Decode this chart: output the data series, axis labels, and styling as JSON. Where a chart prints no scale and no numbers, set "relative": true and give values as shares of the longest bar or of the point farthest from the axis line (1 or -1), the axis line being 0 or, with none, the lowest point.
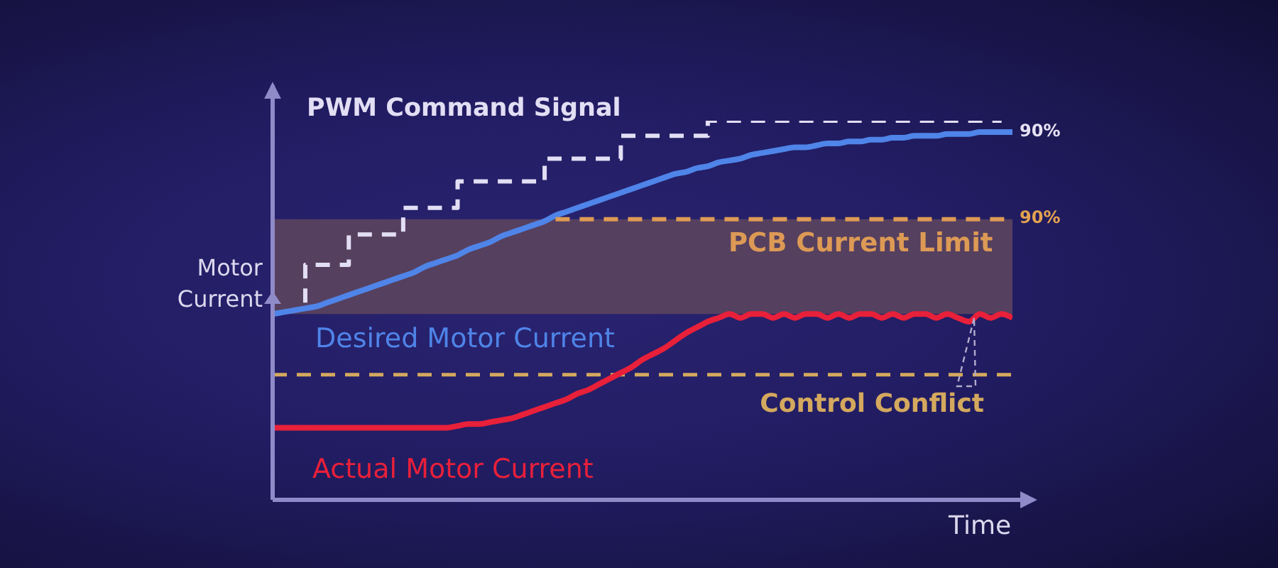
{
  "chart_data": {
    "type": "line",
    "relative": true,
    "xlabel": "Time",
    "ylabel": "Motor Current",
    "categories": [
      null,
      null,
      null,
      null,
      null,
      null,
      null,
      null,
      null,
      null,
      null,
      null,
      null,
      null,
      null,
      null,
      null,
      null,
      null,
      null,
      null,
      null,
      null,
      null,
      null,
      null,
      null,
      null,
      null,
      null,
      null,
      null,
      null,
      null,
      null,
      null,
      null,
      null,
      null,
      null,
      null,
      null,
      null,
      null,
      null,
      null,
      null,
      null,
      null,
      null,
      null,
      null,
      null,
      null,
      null,
      null,
      null,
      null,
      null,
      null,
      null,
      null,
      null,
      null,
      null,
      null,
      null,
      null,
      null
    ],
    "series": [
      {
        "name": "PWM Command Signal",
        "type": "step",
        "line_style": "dashed",
        "color": "#e2def4",
        "values": [
          null,
          null,
          null,
          0.52,
          0.62,
          0.62,
          0.62,
          0.62,
          0.7,
          0.7,
          0.7,
          0.7,
          0.7,
          0.77,
          0.77,
          0.77,
          0.77,
          0.77,
          0.84,
          0.84,
          0.84,
          0.84,
          0.84,
          0.84,
          0.84,
          0.84,
          0.9,
          0.9,
          0.9,
          0.9,
          0.9,
          0.9,
          0.9,
          0.96,
          0.96,
          0.96,
          0.96,
          0.96,
          0.96,
          0.96,
          0.96,
          1,
          1,
          1,
          1,
          1,
          1,
          1,
          1,
          1,
          1,
          1,
          1,
          1,
          1,
          1,
          1,
          1,
          1,
          1,
          1,
          1,
          1,
          1,
          1,
          1,
          1,
          1,
          null
        ]
      },
      {
        "name": "Desired Motor Current",
        "color": "#4f84e8",
        "values": [
          0.49,
          0.495,
          0.5,
          0.505,
          0.51,
          0.52,
          0.53,
          0.54,
          0.55,
          0.56,
          0.57,
          0.58,
          0.59,
          0.6,
          0.615,
          0.625,
          0.635,
          0.645,
          0.66,
          0.67,
          0.68,
          0.695,
          0.705,
          0.715,
          0.725,
          0.735,
          0.75,
          0.76,
          0.77,
          0.78,
          0.79,
          0.8,
          0.81,
          0.82,
          0.83,
          0.84,
          0.85,
          0.86,
          0.865,
          0.875,
          0.88,
          0.89,
          0.895,
          0.9,
          0.91,
          0.915,
          0.92,
          0.925,
          0.93,
          0.93,
          0.935,
          0.94,
          0.94,
          0.945,
          0.945,
          0.95,
          0.95,
          0.955,
          0.955,
          0.96,
          0.96,
          0.96,
          0.965,
          0.965,
          0.965,
          0.97,
          0.97,
          0.97,
          0.97
        ]
      },
      {
        "name": "PCB Current Limit",
        "line_style": "dashed",
        "color": "#dd9a55",
        "values": [
          null,
          null,
          null,
          null,
          null,
          null,
          null,
          null,
          null,
          null,
          null,
          null,
          null,
          null,
          null,
          null,
          null,
          null,
          null,
          null,
          null,
          null,
          null,
          null,
          null,
          null,
          0.74,
          0.74,
          0.74,
          0.74,
          0.74,
          0.74,
          0.74,
          0.74,
          0.74,
          0.74,
          0.74,
          0.74,
          0.74,
          0.74,
          0.74,
          0.74,
          0.74,
          0.74,
          0.74,
          0.74,
          0.74,
          0.74,
          0.74,
          0.74,
          0.74,
          0.74,
          0.74,
          0.74,
          0.74,
          0.74,
          0.74,
          0.74,
          0.74,
          0.74,
          0.74,
          0.74,
          0.74,
          0.74,
          0.74,
          0.74,
          0.74,
          0.74,
          0.74
        ]
      },
      {
        "name": "Actual Motor Current",
        "color": "#e8203a",
        "values": [
          0.19,
          0.19,
          0.19,
          0.19,
          0.19,
          0.19,
          0.19,
          0.19,
          0.19,
          0.19,
          0.19,
          0.19,
          0.19,
          0.19,
          0.19,
          0.19,
          0.19,
          0.195,
          0.2,
          0.2,
          0.205,
          0.21,
          0.215,
          0.225,
          0.235,
          0.245,
          0.255,
          0.265,
          0.28,
          0.29,
          0.305,
          0.32,
          0.335,
          0.35,
          0.37,
          0.385,
          0.4,
          0.42,
          0.44,
          0.455,
          0.47,
          0.48,
          0.49,
          0.48,
          0.49,
          0.49,
          0.48,
          0.49,
          0.48,
          0.49,
          0.49,
          0.48,
          0.49,
          0.48,
          0.49,
          0.49,
          0.48,
          0.49,
          0.48,
          0.49,
          0.49,
          0.48,
          0.49,
          0.48,
          0.47,
          0.49,
          0.48,
          0.49,
          0.48
        ]
      }
    ],
    "bands": [
      {
        "axis": "y",
        "from": 0.49,
        "to": 0.74,
        "color": "#56405f"
      }
    ],
    "ref_lines": [
      {
        "axis": "y",
        "value": 0.33,
        "label": "Control Conflict",
        "color": "#d4a95e",
        "line_style": "dashed"
      }
    ],
    "annotations": [
      "90%",
      "90%"
    ]
  }
}
